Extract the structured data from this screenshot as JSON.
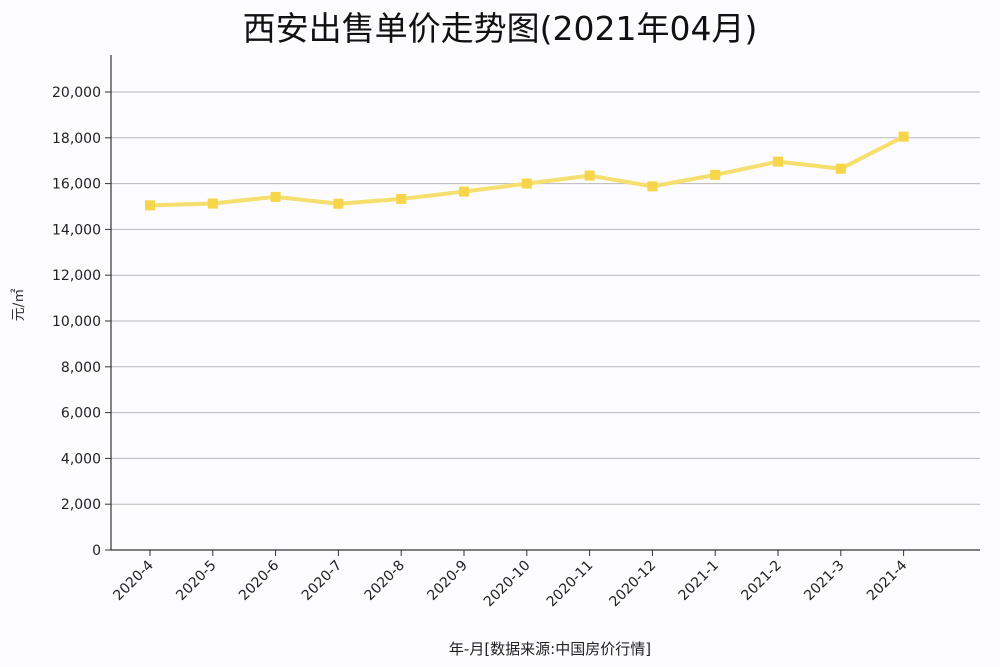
{
  "chart_data": {
    "type": "line",
    "title": "西安出售单价走势图(2021年04月)",
    "xlabel": "年-月[数据来源:中国房价行情]",
    "ylabel": "元/㎡",
    "categories": [
      "2020-4",
      "2020-5",
      "2020-6",
      "2020-7",
      "2020-8",
      "2020-9",
      "2020-10",
      "2020-11",
      "2020-12",
      "2021-1",
      "2021-2",
      "2021-3",
      "2021-4"
    ],
    "series": [
      {
        "values": [
          15050,
          15130,
          15420,
          15120,
          15330,
          15650,
          16000,
          16350,
          15880,
          16380,
          16960,
          16650,
          18050
        ]
      }
    ],
    "ylim": [
      0,
      21000
    ],
    "yticks": [
      0,
      2000,
      4000,
      6000,
      8000,
      10000,
      12000,
      14000,
      16000,
      18000,
      20000
    ],
    "ytick_labels": [
      "0",
      "2,000",
      "4,000",
      "6,000",
      "8,000",
      "10,000",
      "12,000",
      "14,000",
      "16,000",
      "18,000",
      "20,000"
    ],
    "grid": true,
    "line_color": "#f5df6e",
    "marker_color": "#f7d54a"
  }
}
